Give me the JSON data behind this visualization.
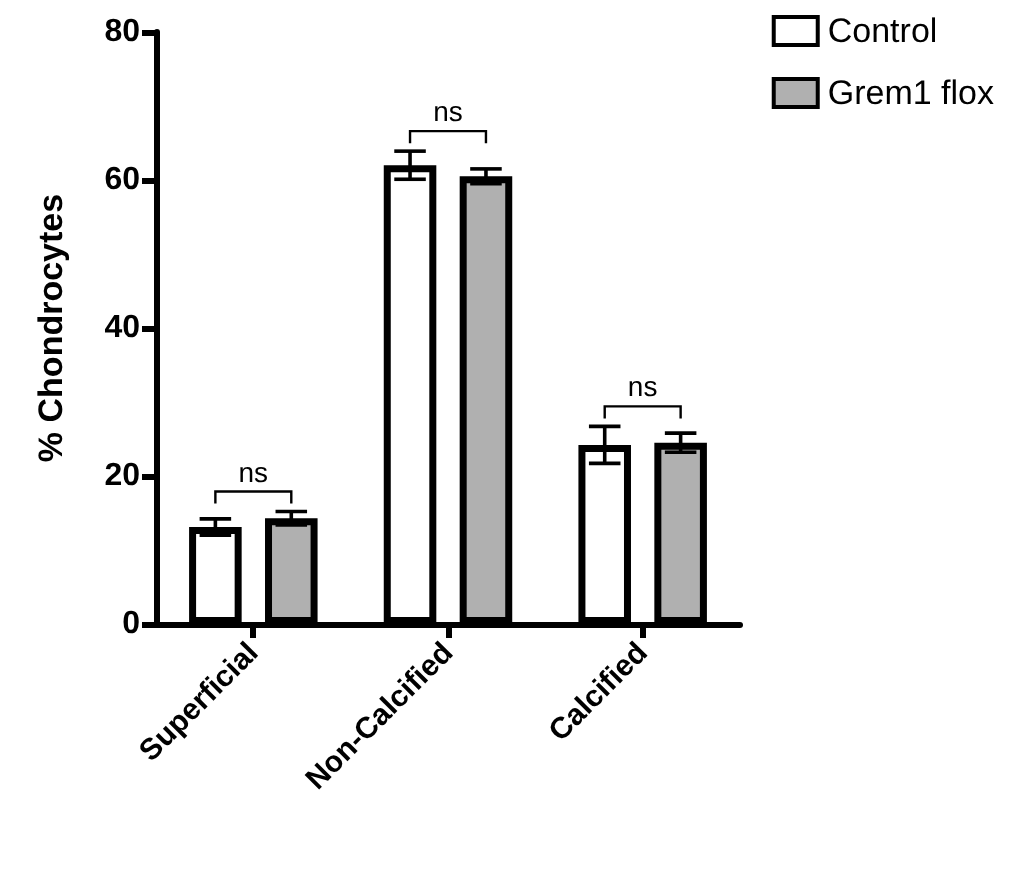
{
  "chart_data": {
    "type": "bar",
    "ylabel": "% Chondrocytes",
    "categories": [
      "Superficial",
      "Non-Calcified",
      "Calcified"
    ],
    "series": [
      {
        "name": "Control",
        "color": "#ffffff",
        "values": [
          13.1,
          62.0,
          24.2
        ],
        "errors": [
          1.1,
          1.9,
          2.5
        ]
      },
      {
        "name": "Grem1 flox",
        "color": "#b0b0b0",
        "values": [
          14.3,
          60.5,
          24.5
        ],
        "errors": [
          0.9,
          1.0,
          1.3
        ]
      }
    ],
    "ylim": [
      0,
      80
    ],
    "yticks": [
      0,
      20,
      40,
      60,
      80
    ],
    "grid": false,
    "legend": "top right",
    "annotations": [
      "ns",
      "ns",
      "ns"
    ]
  }
}
